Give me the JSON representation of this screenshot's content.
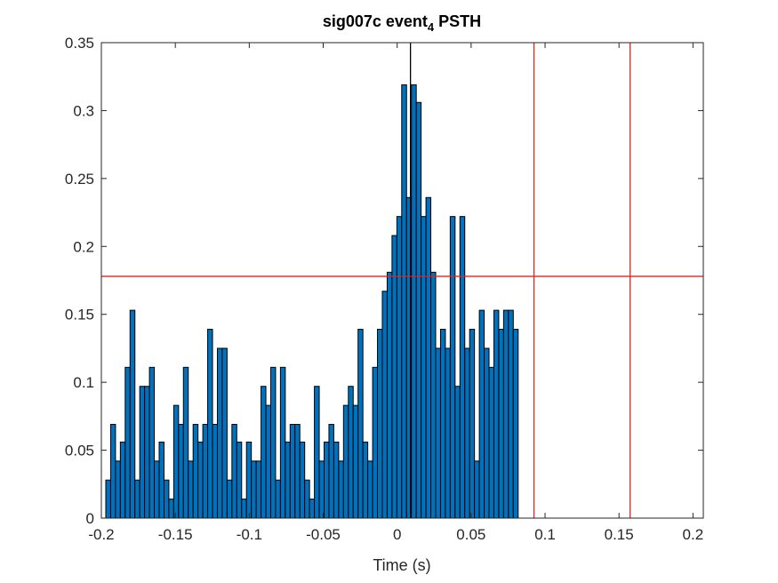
{
  "chart_data": {
    "type": "bar",
    "title_main": "sig007c event",
    "title_subscript": "4",
    "title_suffix": " PSTH",
    "xlabel": "Time (s)",
    "ylabel": "",
    "xlim": [
      -0.2,
      0.207
    ],
    "ylim": [
      0,
      0.35
    ],
    "xticks": [
      -0.2,
      -0.15,
      -0.1,
      -0.05,
      0,
      0.05,
      0.1,
      0.15,
      0.2
    ],
    "xtick_labels": [
      "-0.2",
      "-0.15",
      "-0.1",
      "-0.05",
      "0",
      "0.05",
      "0.1",
      "0.15",
      "0.2"
    ],
    "yticks": [
      0,
      0.05,
      0.1,
      0.15,
      0.2,
      0.25,
      0.3,
      0.35
    ],
    "ytick_labels": [
      "0",
      "0.05",
      "0.1",
      "0.15",
      "0.2",
      "0.25",
      "0.3",
      "0.35"
    ],
    "bin_start": -0.197,
    "bin_width": 0.00328,
    "values": [
      0.028,
      0.069,
      0.042,
      0.056,
      0.111,
      0.153,
      0.028,
      0.097,
      0.097,
      0.111,
      0.042,
      0.056,
      0.028,
      0.014,
      0.083,
      0.069,
      0.111,
      0.042,
      0.069,
      0.056,
      0.069,
      0.139,
      0.069,
      0.125,
      0.125,
      0.028,
      0.069,
      0.056,
      0.014,
      0.056,
      0.042,
      0.042,
      0.097,
      0.083,
      0.111,
      0.028,
      0.111,
      0.056,
      0.069,
      0.069,
      0.056,
      0.028,
      0.014,
      0.097,
      0.042,
      0.056,
      0.069,
      0.056,
      0.042,
      0.083,
      0.097,
      0.083,
      0.139,
      0.056,
      0.042,
      0.111,
      0.139,
      0.167,
      0.181,
      0.208,
      0.222,
      0.319,
      0.236,
      0.319,
      0.306,
      0.222,
      0.236,
      0.181,
      0.125,
      0.139,
      0.125,
      0.222,
      0.097,
      0.222,
      0.125,
      0.139,
      0.042,
      0.153,
      0.125,
      0.111,
      0.153,
      0.139,
      0.153,
      0.153,
      0.139
    ],
    "bar_color": "#0072BD",
    "bar_edge_color": "#000000",
    "vlines": [
      {
        "x": 0.009,
        "color": "#000000"
      },
      {
        "x": 0.0925,
        "color": "#D62728"
      },
      {
        "x": 0.1575,
        "color": "#D62728"
      }
    ],
    "hlines": [
      {
        "y": 0.178,
        "color": "#D62728"
      }
    ],
    "grid": false
  }
}
